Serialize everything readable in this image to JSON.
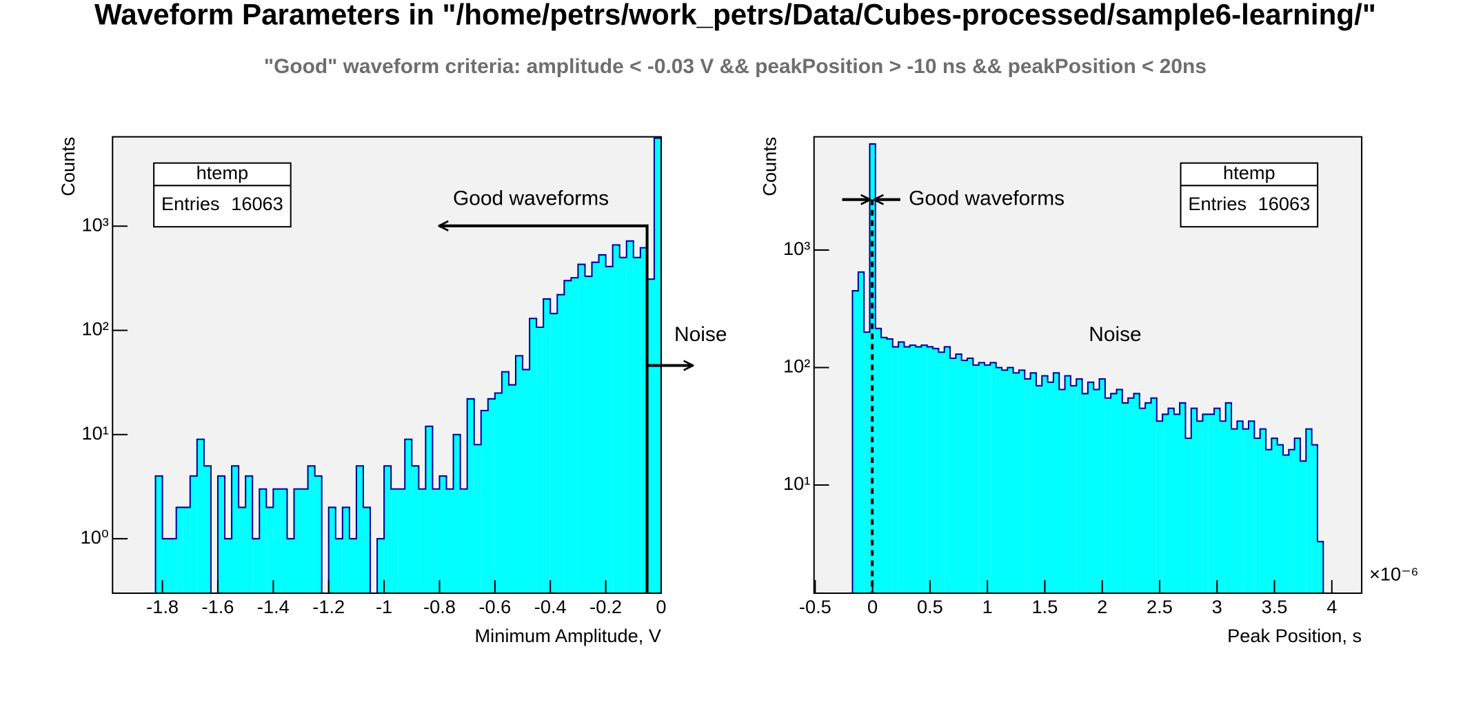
{
  "title": "Waveform Parameters in \"/home/petrs/work_petrs/Data/Cubes-processed/sample6-learning/\"",
  "subtitle": "\"Good\" waveform criteria: amplitude < -0.03 V && peakPosition > -10 ns && peakPosition < 20ns",
  "chart_data": [
    {
      "type": "histogram",
      "xlabel": "Minimum Amplitude, V",
      "ylabel": "Counts",
      "legend": {
        "title": "htemp",
        "label": "Entries",
        "value": 16063
      },
      "annotations": [
        "Good waveforms",
        "Noise"
      ],
      "color": "#00ffff",
      "edge_color": "#000099",
      "log_y": true,
      "xlim": [
        -1.98,
        0.0
      ],
      "ylim": [
        0.3,
        7200
      ],
      "xticks": [
        -1.8,
        -1.6,
        -1.4,
        -1.2,
        -1,
        -0.8,
        -0.6,
        -0.4,
        -0.2,
        0
      ],
      "yticks": [
        {
          "value": 1,
          "label": "10⁰"
        },
        {
          "value": 10,
          "label": "10¹"
        },
        {
          "value": 100,
          "label": "10²"
        },
        {
          "value": 1000,
          "label": "10³"
        }
      ],
      "bins": [
        -1.825,
        -1.8,
        -1.775,
        -1.75,
        -1.725,
        -1.7,
        -1.675,
        -1.65,
        -1.625,
        -1.6,
        -1.575,
        -1.55,
        -1.525,
        -1.5,
        -1.475,
        -1.45,
        -1.425,
        -1.4,
        -1.375,
        -1.35,
        -1.325,
        -1.3,
        -1.275,
        -1.25,
        -1.225,
        -1.2,
        -1.175,
        -1.15,
        -1.125,
        -1.1,
        -1.075,
        -1.05,
        -1.025,
        -1,
        -0.975,
        -0.95,
        -0.925,
        -0.9,
        -0.875,
        -0.85,
        -0.825,
        -0.8,
        -0.775,
        -0.75,
        -0.725,
        -0.7,
        -0.675,
        -0.65,
        -0.625,
        -0.6,
        -0.575,
        -0.55,
        -0.525,
        -0.5,
        -0.475,
        -0.45,
        -0.425,
        -0.4,
        -0.375,
        -0.35,
        -0.325,
        -0.3,
        -0.275,
        -0.25,
        -0.225,
        -0.2,
        -0.175,
        -0.15,
        -0.125,
        -0.1,
        -0.075,
        -0.05,
        -0.025,
        0
      ],
      "values": [
        4,
        1,
        1,
        2,
        2,
        4,
        9,
        5,
        0,
        4,
        1,
        5,
        2,
        4,
        1,
        3,
        2,
        3,
        3,
        1,
        3,
        3,
        5,
        4,
        0,
        2,
        1,
        2,
        1,
        5,
        2,
        0,
        1,
        5,
        3,
        3,
        9,
        5,
        3,
        12,
        3,
        4,
        3,
        10,
        3,
        22,
        8,
        17,
        22,
        25,
        40,
        30,
        57,
        42,
        130,
        107,
        200,
        145,
        220,
        300,
        320,
        430,
        330,
        450,
        530,
        410,
        660,
        500,
        720,
        500,
        620,
        310,
        7000
      ]
    },
    {
      "type": "histogram",
      "xlabel": "Peak Position, s",
      "ylabel": "Counts",
      "x_multiplier": "×10⁻⁶",
      "legend": {
        "title": "htemp",
        "label": "Entries",
        "value": 16063
      },
      "annotations": [
        "Good waveforms",
        "Noise"
      ],
      "color": "#00ffff",
      "edge_color": "#000099",
      "log_y": true,
      "xlim": [
        -0.51,
        4.26
      ],
      "ylim": [
        1.2,
        9200
      ],
      "xticks": [
        -0.5,
        0,
        0.5,
        1,
        1.5,
        2,
        2.5,
        3,
        3.5,
        4
      ],
      "yticks": [
        {
          "value": 10,
          "label": "10¹"
        },
        {
          "value": 100,
          "label": "10²"
        },
        {
          "value": 1000,
          "label": "10³"
        }
      ],
      "bins": [
        -0.175,
        -0.125,
        -0.075,
        -0.025,
        0.025,
        0.075,
        0.125,
        0.175,
        0.225,
        0.275,
        0.325,
        0.375,
        0.425,
        0.475,
        0.525,
        0.575,
        0.625,
        0.675,
        0.725,
        0.775,
        0.825,
        0.875,
        0.925,
        0.975,
        1.025,
        1.075,
        1.125,
        1.175,
        1.225,
        1.275,
        1.325,
        1.375,
        1.425,
        1.475,
        1.525,
        1.575,
        1.625,
        1.675,
        1.725,
        1.775,
        1.825,
        1.875,
        1.925,
        1.975,
        2.025,
        2.075,
        2.125,
        2.175,
        2.225,
        2.275,
        2.325,
        2.375,
        2.425,
        2.475,
        2.525,
        2.575,
        2.625,
        2.675,
        2.725,
        2.775,
        2.825,
        2.875,
        2.925,
        2.975,
        3.025,
        3.075,
        3.125,
        3.175,
        3.225,
        3.275,
        3.325,
        3.375,
        3.425,
        3.475,
        3.525,
        3.575,
        3.625,
        3.675,
        3.725,
        3.775,
        3.825,
        3.875,
        3.925
      ],
      "values": [
        450,
        650,
        200,
        8000,
        215,
        180,
        175,
        150,
        165,
        150,
        155,
        150,
        155,
        150,
        145,
        135,
        150,
        120,
        130,
        115,
        120,
        105,
        110,
        105,
        110,
        100,
        95,
        100,
        90,
        95,
        80,
        90,
        70,
        85,
        75,
        90,
        65,
        85,
        70,
        80,
        60,
        75,
        65,
        80,
        55,
        60,
        65,
        50,
        55,
        60,
        45,
        50,
        55,
        35,
        40,
        45,
        40,
        50,
        25,
        45,
        35,
        40,
        40,
        45,
        35,
        50,
        30,
        35,
        30,
        35,
        25,
        30,
        20,
        25,
        22,
        18,
        20,
        25,
        16,
        30,
        22,
        3.3
      ]
    }
  ]
}
